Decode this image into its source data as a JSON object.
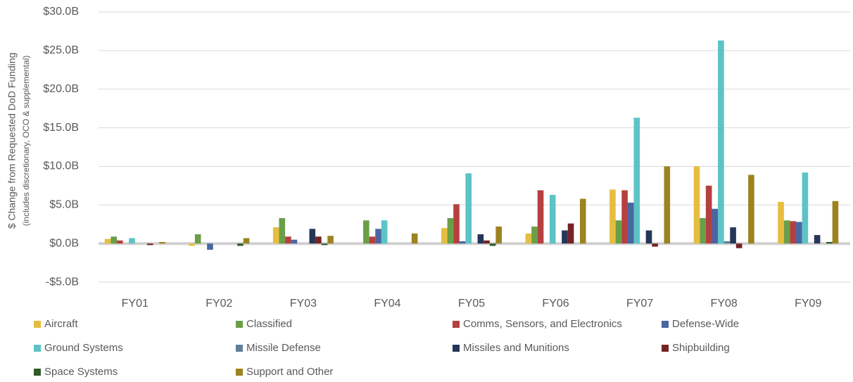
{
  "chart_data": {
    "type": "bar",
    "ylabel": "$ Change from Requested DoD Funding",
    "ylabel_note": "(includes discretionary, OCO & supplemental)",
    "categories": [
      "FY01",
      "FY02",
      "FY03",
      "FY04",
      "FY05",
      "FY06",
      "FY07",
      "FY08",
      "FY09"
    ],
    "series": [
      {
        "name": "Aircraft",
        "color": "#e6bd3f",
        "values": [
          0.6,
          -0.3,
          2.1,
          0,
          2.0,
          1.3,
          7.0,
          10.0,
          5.4
        ]
      },
      {
        "name": "Classified",
        "color": "#6a9f48",
        "values": [
          0.9,
          1.2,
          3.3,
          3.0,
          3.3,
          2.2,
          3.0,
          3.3,
          3.0
        ]
      },
      {
        "name": "Comms, Sensors, and Electronics",
        "color": "#b5403f",
        "values": [
          0.4,
          0,
          0.9,
          0.9,
          5.1,
          6.9,
          6.9,
          7.5,
          2.9
        ]
      },
      {
        "name": "Defense-Wide",
        "color": "#4a66a2",
        "values": [
          0,
          -0.8,
          0.5,
          1.9,
          0.3,
          0,
          5.3,
          4.5,
          2.8
        ]
      },
      {
        "name": "Ground Systems",
        "color": "#5cc3c6",
        "values": [
          0.7,
          0,
          0,
          3.0,
          9.1,
          6.3,
          16.3,
          26.3,
          9.2
        ]
      },
      {
        "name": "Missile Defense",
        "color": "#5f7e99",
        "values": [
          0,
          0,
          0,
          0,
          0,
          0,
          0,
          0.3,
          0
        ]
      },
      {
        "name": "Missiles and Munitions",
        "color": "#263659",
        "values": [
          0,
          0,
          1.9,
          0,
          1.2,
          1.7,
          1.7,
          2.1,
          1.1
        ]
      },
      {
        "name": "Shipbuilding",
        "color": "#742424",
        "values": [
          -0.2,
          0,
          0.9,
          0,
          0.4,
          2.6,
          -0.4,
          -0.6,
          0
        ]
      },
      {
        "name": "Space Systems",
        "color": "#2f5a26",
        "values": [
          0,
          -0.3,
          -0.2,
          0,
          -0.3,
          0,
          0,
          0,
          0.2
        ]
      },
      {
        "name": "Support and Other",
        "color": "#9c8320",
        "values": [
          0.2,
          0.7,
          1.0,
          1.3,
          2.2,
          5.8,
          10.0,
          8.9,
          5.5
        ]
      }
    ],
    "ylim": [
      -7,
      30
    ],
    "yticks": [
      {
        "value": -5,
        "label": "-$5.0B"
      },
      {
        "value": 0,
        "label": "$0.0B"
      },
      {
        "value": 5,
        "label": "$5.0B"
      },
      {
        "value": 10,
        "label": "$10.0B"
      },
      {
        "value": 15,
        "label": "$15.0B"
      },
      {
        "value": 20,
        "label": "$20.0B"
      },
      {
        "value": 25,
        "label": "$25.0B"
      },
      {
        "value": 30,
        "label": "$30.0B"
      }
    ],
    "grid": true,
    "legend": "bottom"
  }
}
